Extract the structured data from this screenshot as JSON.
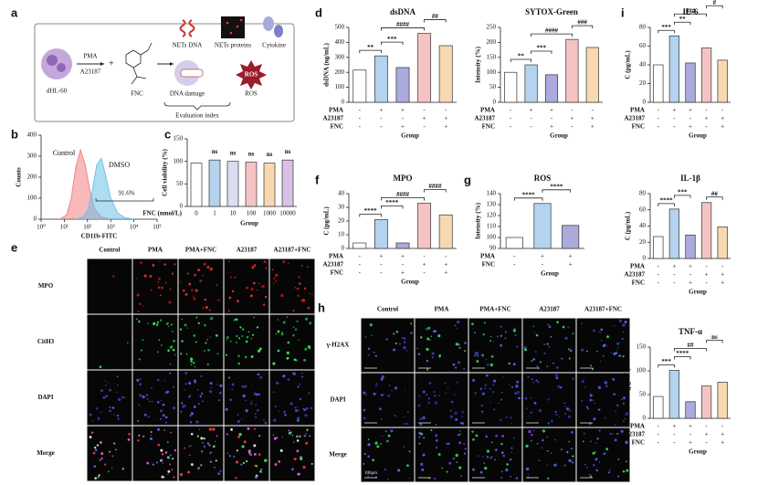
{
  "panel_labels": [
    "a",
    "b",
    "c",
    "d",
    "e",
    "f",
    "g",
    "h",
    "i"
  ],
  "schematic": {
    "cell": "dHL-60",
    "stimuli": [
      "PMA",
      "A23187"
    ],
    "plus": "+",
    "drug": "FNC",
    "indices": [
      "NETs DNA",
      "NETs proteins",
      "Cytokine",
      "DNA damage",
      "ROS"
    ],
    "ros_icon": "ROS",
    "caption": "Evaluation index"
  },
  "microscopy_e": {
    "columns": [
      "Control",
      "PMA",
      "PMA+FNC",
      "A23187",
      "A23187+FNC"
    ],
    "rows": [
      "MPO",
      "CitH3",
      "DAPI",
      "Merge"
    ]
  },
  "microscopy_h": {
    "columns": [
      "Control",
      "PMA",
      "PMA+FNC",
      "A23187",
      "A23187+FNC"
    ],
    "rows": [
      "γ-H2AX",
      "DAPI",
      "Merge"
    ],
    "scale_bar": "100μm"
  },
  "chart_data": [
    {
      "type": "area",
      "xlabel": "CD11b-FITC",
      "ylabel": "Counts",
      "xlim": [
        0,
        5
      ],
      "xticks": [
        {
          "value": 0,
          "label": "10⁰"
        },
        {
          "value": 1,
          "label": "10¹"
        },
        {
          "value": 2,
          "label": "10²"
        },
        {
          "value": 3,
          "label": "10³"
        },
        {
          "value": 4,
          "label": "10⁴"
        },
        {
          "value": 5,
          "label": "10⁵"
        }
      ],
      "ylim": [
        0,
        400
      ],
      "yticks": [
        0,
        100,
        200,
        300,
        400
      ],
      "series": [
        {
          "name": "Control",
          "color": "#f08080",
          "x": [
            0.8,
            1.1,
            1.3,
            1.5,
            1.7,
            1.9,
            2.1,
            2.3,
            2.6,
            3.0
          ],
          "values": [
            0,
            20,
            100,
            250,
            330,
            260,
            140,
            50,
            10,
            0
          ]
        },
        {
          "name": "DMSO",
          "color": "#6cc0e8",
          "x": [
            1.5,
            1.8,
            2.0,
            2.2,
            2.4,
            2.6,
            2.8,
            3.0,
            3.3,
            3.6,
            4.0
          ],
          "values": [
            0,
            10,
            40,
            130,
            260,
            290,
            200,
            100,
            30,
            8,
            0
          ]
        }
      ],
      "annotation": "91.6%"
    },
    {
      "type": "bar",
      "ylabel": "Cell viability (%)",
      "xlabel": "FNC (nmol/L)",
      "group_label": "Group",
      "categories": [
        "0",
        "1",
        "10",
        "100",
        "1000",
        "10000"
      ],
      "values": [
        96,
        103,
        100,
        98,
        96,
        103
      ],
      "colors": [
        "#ffffff",
        "#b3d3ee",
        "#dcdcf2",
        "#f5c3c3",
        "#f7d8b0",
        "#d8c0e6"
      ],
      "ylim": [
        0,
        150
      ],
      "yticks": [
        0,
        50,
        100,
        150
      ],
      "annotations": [
        {
          "text": "ns",
          "from": 1,
          "to": 1
        },
        {
          "text": "ns",
          "from": 2,
          "to": 2
        },
        {
          "text": "ns",
          "from": 3,
          "to": 3
        },
        {
          "text": "ns",
          "from": 4,
          "to": 4
        },
        {
          "text": "ns",
          "from": 5,
          "to": 5
        }
      ]
    },
    {
      "type": "bar",
      "title": "dsDNA",
      "ylabel": "dsDNA (ng/mL)",
      "group_label": "Group",
      "values": [
        215,
        310,
        232,
        460,
        378
      ],
      "colors": [
        "#ffffff",
        "#b3d3ee",
        "#aaaadd",
        "#f5c3c3",
        "#f7d8b0"
      ],
      "ylim": [
        0,
        500
      ],
      "yticks": [
        0,
        100,
        200,
        300,
        400,
        500
      ],
      "group_rows": [
        {
          "name": "PMA",
          "signs": [
            "-",
            "+",
            "+",
            "-",
            "-"
          ]
        },
        {
          "name": "A23187",
          "signs": [
            "-",
            "-",
            "-",
            "+",
            "+"
          ]
        },
        {
          "name": "FNC",
          "signs": [
            "-",
            "-",
            "+",
            "-",
            "+"
          ]
        }
      ],
      "annotations": [
        {
          "text": "**",
          "from": 0,
          "to": 1
        },
        {
          "text": "***",
          "from": 1,
          "to": 2
        },
        {
          "text": "####",
          "from": 1,
          "to": 3
        },
        {
          "text": "##",
          "from": 3,
          "to": 4
        }
      ]
    },
    {
      "type": "bar",
      "title": "SYTOX-Green",
      "ylabel": "Intensity (%)",
      "group_label": "Group",
      "values": [
        100,
        125,
        92,
        210,
        183
      ],
      "colors": [
        "#ffffff",
        "#b3d3ee",
        "#aaaadd",
        "#f5c3c3",
        "#f7d8b0"
      ],
      "ylim": [
        0,
        250
      ],
      "yticks": [
        0,
        50,
        100,
        150,
        200,
        250
      ],
      "group_rows": [
        {
          "name": "PMA",
          "signs": [
            "-",
            "+",
            "+",
            "-",
            "-"
          ]
        },
        {
          "name": "A23187",
          "signs": [
            "-",
            "-",
            "-",
            "+",
            "+"
          ]
        },
        {
          "name": "FNC",
          "signs": [
            "-",
            "-",
            "+",
            "-",
            "+"
          ]
        }
      ],
      "annotations": [
        {
          "text": "**",
          "from": 0,
          "to": 1
        },
        {
          "text": "***",
          "from": 1,
          "to": 2
        },
        {
          "text": "####",
          "from": 1,
          "to": 3
        },
        {
          "text": "###",
          "from": 3,
          "to": 4
        }
      ]
    },
    {
      "type": "bar",
      "title": "MPO",
      "ylabel": "C (pg/mL)",
      "group_label": "Group",
      "values": [
        4,
        21,
        4,
        33,
        24.5
      ],
      "colors": [
        "#ffffff",
        "#b3d3ee",
        "#aaaadd",
        "#f5c3c3",
        "#f7d8b0"
      ],
      "ylim": [
        0,
        40
      ],
      "yticks": [
        0,
        10,
        20,
        30,
        40
      ],
      "group_rows": [
        {
          "name": "PMA",
          "signs": [
            "-",
            "+",
            "+",
            "-",
            "-"
          ]
        },
        {
          "name": "A23187",
          "signs": [
            "-",
            "-",
            "-",
            "+",
            "+"
          ]
        },
        {
          "name": "FNC",
          "signs": [
            "-",
            "-",
            "+",
            "-",
            "+"
          ]
        }
      ],
      "annotations": [
        {
          "text": "****",
          "from": 0,
          "to": 1
        },
        {
          "text": "****",
          "from": 1,
          "to": 2
        },
        {
          "text": "####",
          "from": 1,
          "to": 3
        },
        {
          "text": "####",
          "from": 3,
          "to": 4
        }
      ]
    },
    {
      "type": "bar",
      "title": "ROS",
      "ylabel": "Intensity (%)",
      "group_label": "Group",
      "values": [
        100,
        131,
        111
      ],
      "colors": [
        "#ffffff",
        "#b3d3ee",
        "#aaaadd"
      ],
      "ylim": [
        90,
        140
      ],
      "yticks": [
        90,
        100,
        110,
        120,
        130,
        140
      ],
      "group_rows": [
        {
          "name": "PMA",
          "signs": [
            "-",
            "+",
            "+"
          ]
        },
        {
          "name": "FNC",
          "signs": [
            "-",
            "-",
            "+"
          ]
        }
      ],
      "annotations": [
        {
          "text": "****",
          "from": 0,
          "to": 1
        },
        {
          "text": "****",
          "from": 1,
          "to": 2
        }
      ]
    },
    {
      "type": "bar",
      "title": "IL-6",
      "ylabel": "C (pg/mL)",
      "group_label": "Group",
      "values": [
        40,
        71,
        42,
        58,
        45
      ],
      "colors": [
        "#ffffff",
        "#b3d3ee",
        "#aaaadd",
        "#f5c3c3",
        "#f7d8b0"
      ],
      "ylim": [
        0,
        80
      ],
      "yticks": [
        0,
        20,
        40,
        60,
        80
      ],
      "group_rows": [
        {
          "name": "PMA",
          "signs": [
            "-",
            "+",
            "+",
            "-",
            "-"
          ]
        },
        {
          "name": "A23187",
          "signs": [
            "-",
            "-",
            "-",
            "+",
            "+"
          ]
        },
        {
          "name": "FNC",
          "signs": [
            "-",
            "-",
            "+",
            "-",
            "+"
          ]
        }
      ],
      "annotations": [
        {
          "text": "***",
          "from": 0,
          "to": 1
        },
        {
          "text": "**",
          "from": 1,
          "to": 2
        },
        {
          "text": "###",
          "from": 1,
          "to": 3
        },
        {
          "text": "#",
          "from": 3,
          "to": 4
        }
      ]
    },
    {
      "type": "bar",
      "title": "IL-1β",
      "ylabel": "C (pg/mL)",
      "group_label": "Group",
      "values": [
        27,
        61,
        29,
        69,
        39
      ],
      "colors": [
        "#ffffff",
        "#b3d3ee",
        "#aaaadd",
        "#f5c3c3",
        "#f7d8b0"
      ],
      "ylim": [
        0,
        80
      ],
      "yticks": [
        0,
        20,
        40,
        60,
        80
      ],
      "group_rows": [
        {
          "name": "PMA",
          "signs": [
            "-",
            "+",
            "+",
            "-",
            "-"
          ]
        },
        {
          "name": "A23187",
          "signs": [
            "-",
            "-",
            "-",
            "+",
            "+"
          ]
        },
        {
          "name": "FNC",
          "signs": [
            "-",
            "-",
            "+",
            "-",
            "+"
          ]
        }
      ],
      "annotations": [
        {
          "text": "****",
          "from": 0,
          "to": 1
        },
        {
          "text": "***",
          "from": 1,
          "to": 2
        },
        {
          "text": "##",
          "from": 3,
          "to": 4
        }
      ]
    },
    {
      "type": "bar",
      "title": "TNF-α",
      "ylabel": "C (pg/mL)",
      "group_label": "Group",
      "values": [
        46,
        101,
        35,
        68,
        76
      ],
      "colors": [
        "#ffffff",
        "#b3d3ee",
        "#aaaadd",
        "#f5c3c3",
        "#f7d8b0"
      ],
      "ylim": [
        0,
        150
      ],
      "yticks": [
        0,
        50,
        100,
        150
      ],
      "group_rows": [
        {
          "name": "PMA",
          "signs": [
            "-",
            "+",
            "+",
            "-",
            "-"
          ]
        },
        {
          "name": "A23187",
          "signs": [
            "-",
            "-",
            "-",
            "+",
            "+"
          ]
        },
        {
          "name": "FNC",
          "signs": [
            "-",
            "-",
            "+",
            "-",
            "+"
          ]
        }
      ],
      "annotations": [
        {
          "text": "***",
          "from": 0,
          "to": 1
        },
        {
          "text": "****",
          "from": 1,
          "to": 2
        },
        {
          "text": "##",
          "from": 1,
          "to": 3
        },
        {
          "text": "ns",
          "from": 3,
          "to": 4
        }
      ]
    }
  ]
}
